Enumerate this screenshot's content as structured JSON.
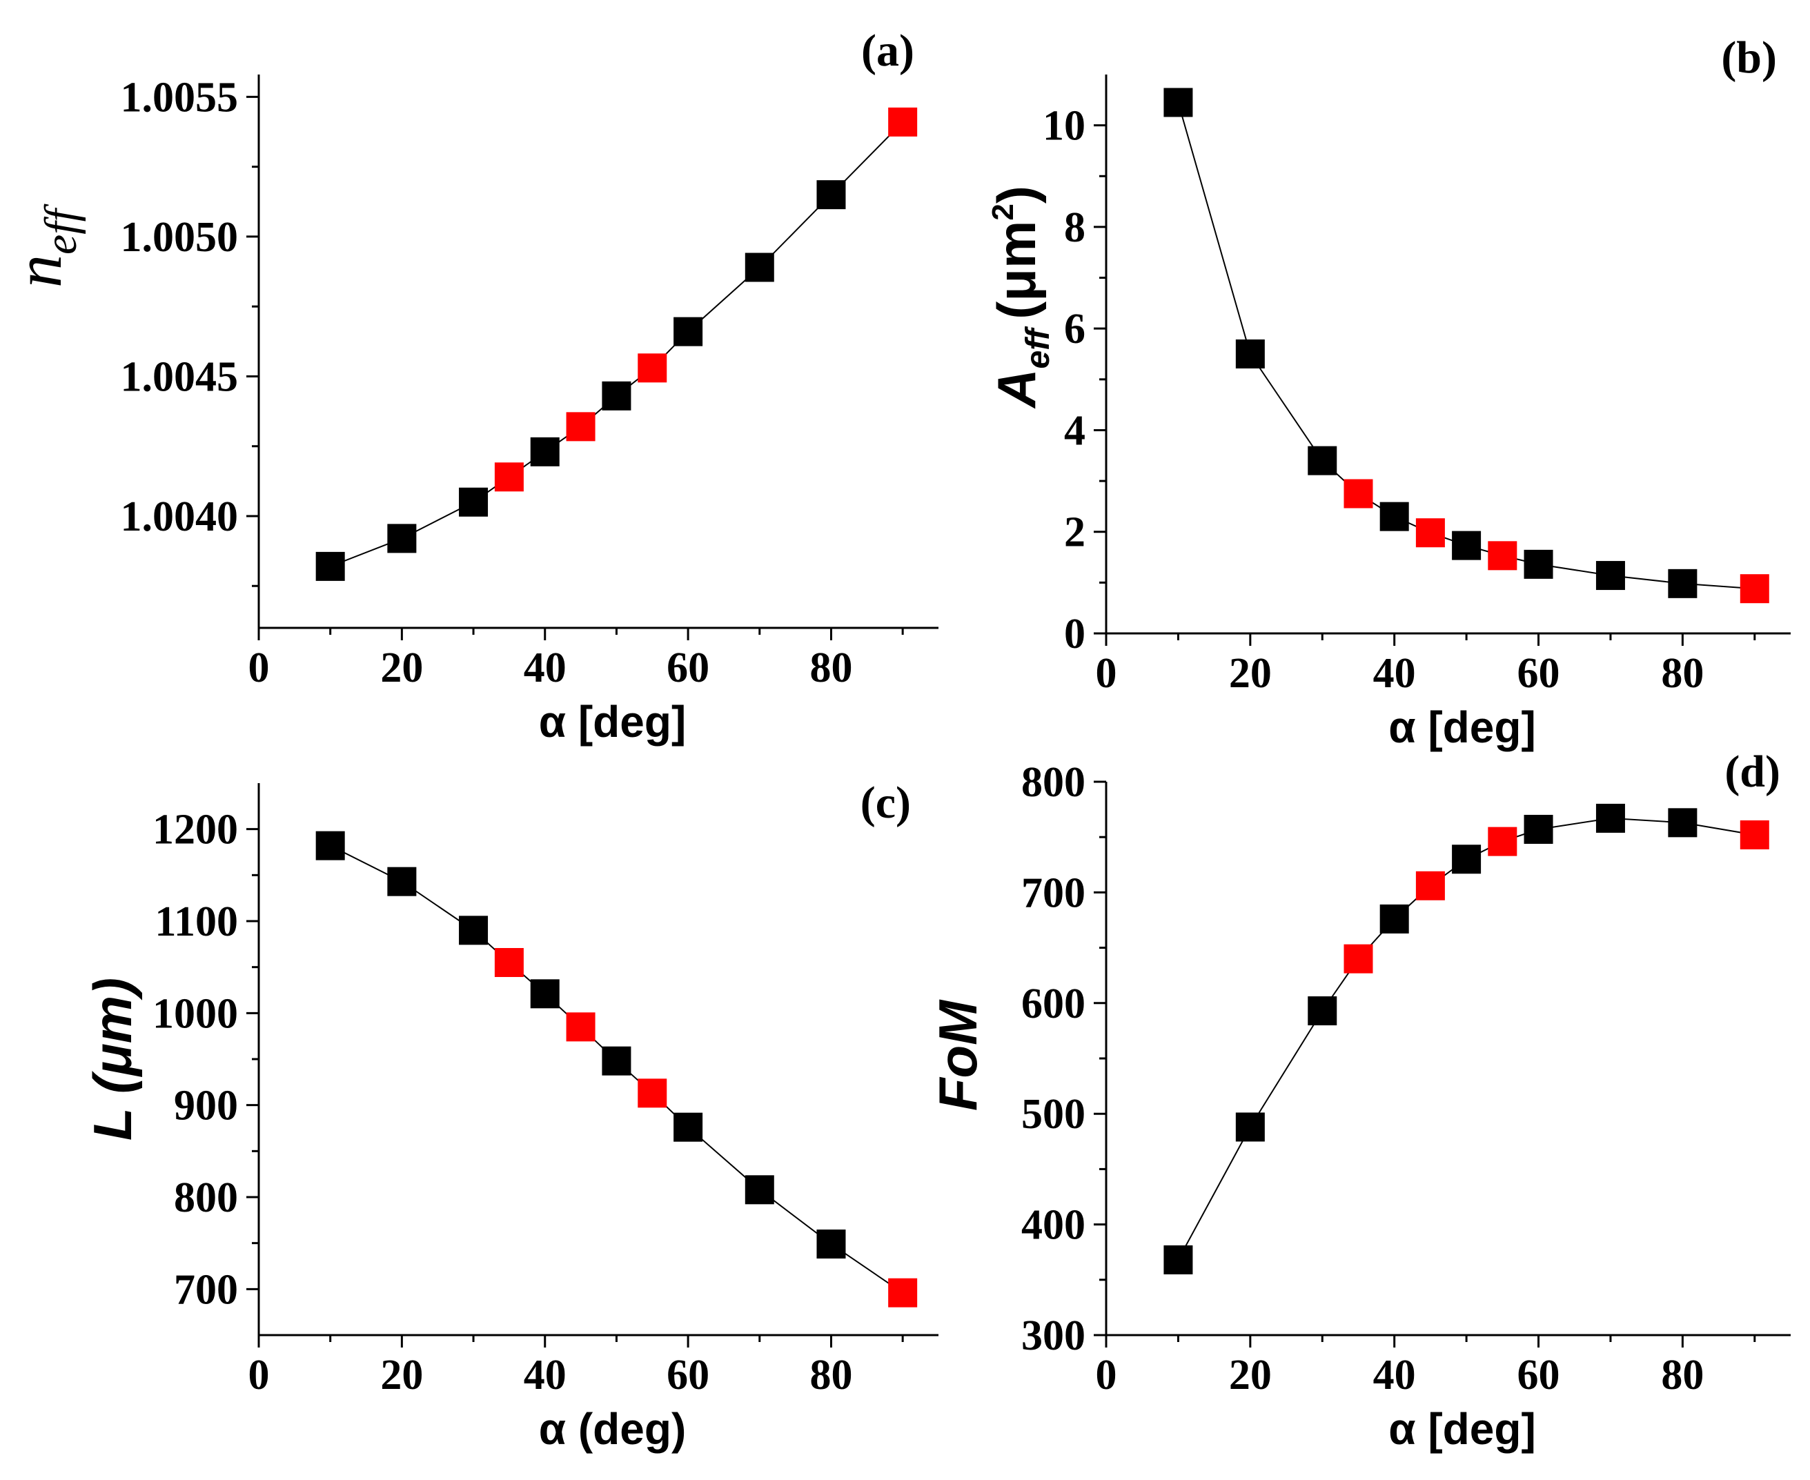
{
  "colors": {
    "base": "#000000",
    "highlight": "#ff0000"
  },
  "chart_data": [
    {
      "panel": "(a)",
      "type": "scatter",
      "ylabel_main": "n",
      "ylabel_sub": "eff",
      "xlabel": "α [deg]",
      "xlim": [
        0,
        95
      ],
      "ylim": [
        1.0036,
        1.00558
      ],
      "xticks": [
        0,
        20,
        40,
        60,
        80
      ],
      "xtick_labels": [
        "0",
        "20",
        "40",
        "60",
        "80"
      ],
      "yticks": [
        1.004,
        1.0045,
        1.005,
        1.0055
      ],
      "ytick_labels": [
        "1.0040",
        "1.0045",
        "1.0050",
        "1.0055"
      ],
      "points": [
        {
          "x": 10,
          "y": 1.00382,
          "hl": false
        },
        {
          "x": 20,
          "y": 1.00392,
          "hl": false
        },
        {
          "x": 30,
          "y": 1.00405,
          "hl": false
        },
        {
          "x": 35,
          "y": 1.00414,
          "hl": true
        },
        {
          "x": 40,
          "y": 1.00423,
          "hl": false
        },
        {
          "x": 45,
          "y": 1.00432,
          "hl": true
        },
        {
          "x": 50,
          "y": 1.00443,
          "hl": false
        },
        {
          "x": 55,
          "y": 1.00453,
          "hl": true
        },
        {
          "x": 60,
          "y": 1.00466,
          "hl": false
        },
        {
          "x": 70,
          "y": 1.00489,
          "hl": false
        },
        {
          "x": 80,
          "y": 1.00515,
          "hl": false
        },
        {
          "x": 90,
          "y": 1.00541,
          "hl": true
        }
      ]
    },
    {
      "panel": "(b)",
      "type": "scatter",
      "ylabel_main": "A",
      "ylabel_sub": "eff",
      "ylabel_unit": "(μm",
      "ylabel_sup": "2",
      "ylabel_close": ")",
      "xlabel": "α [deg]",
      "xlim": [
        0,
        95
      ],
      "ylim": [
        0,
        11
      ],
      "xticks": [
        0,
        20,
        40,
        60,
        80
      ],
      "xtick_labels": [
        "0",
        "20",
        "40",
        "60",
        "80"
      ],
      "yticks": [
        0,
        2,
        4,
        6,
        8,
        10
      ],
      "ytick_labels": [
        "0",
        "2",
        "4",
        "6",
        "8",
        "10"
      ],
      "points": [
        {
          "x": 10,
          "y": 10.45,
          "hl": false
        },
        {
          "x": 20,
          "y": 5.5,
          "hl": false
        },
        {
          "x": 30,
          "y": 3.4,
          "hl": false
        },
        {
          "x": 35,
          "y": 2.75,
          "hl": true
        },
        {
          "x": 40,
          "y": 2.3,
          "hl": false
        },
        {
          "x": 45,
          "y": 1.98,
          "hl": true
        },
        {
          "x": 50,
          "y": 1.73,
          "hl": false
        },
        {
          "x": 55,
          "y": 1.53,
          "hl": true
        },
        {
          "x": 60,
          "y": 1.36,
          "hl": false
        },
        {
          "x": 70,
          "y": 1.14,
          "hl": false
        },
        {
          "x": 80,
          "y": 0.98,
          "hl": false
        },
        {
          "x": 90,
          "y": 0.88,
          "hl": true
        }
      ]
    },
    {
      "panel": "(c)",
      "type": "scatter",
      "ylabel": "L (μm)",
      "xlabel": "α (deg)",
      "xlim": [
        0,
        95
      ],
      "ylim": [
        650,
        1250
      ],
      "xticks": [
        0,
        20,
        40,
        60,
        80
      ],
      "xtick_labels": [
        "0",
        "20",
        "40",
        "60",
        "80"
      ],
      "yticks": [
        700,
        800,
        900,
        1000,
        1100,
        1200
      ],
      "ytick_labels": [
        "700",
        "800",
        "900",
        "1000",
        "1100",
        "1200"
      ],
      "points": [
        {
          "x": 10,
          "y": 1182,
          "hl": false
        },
        {
          "x": 20,
          "y": 1143,
          "hl": false
        },
        {
          "x": 30,
          "y": 1090,
          "hl": false
        },
        {
          "x": 35,
          "y": 1055,
          "hl": true
        },
        {
          "x": 40,
          "y": 1021,
          "hl": false
        },
        {
          "x": 45,
          "y": 985,
          "hl": true
        },
        {
          "x": 50,
          "y": 948,
          "hl": false
        },
        {
          "x": 55,
          "y": 913,
          "hl": true
        },
        {
          "x": 60,
          "y": 876,
          "hl": false
        },
        {
          "x": 70,
          "y": 808,
          "hl": false
        },
        {
          "x": 80,
          "y": 749,
          "hl": false
        },
        {
          "x": 90,
          "y": 696,
          "hl": true
        }
      ]
    },
    {
      "panel": "(d)",
      "type": "scatter",
      "ylabel": "FoM",
      "xlabel": "α [deg]",
      "xlim": [
        0,
        95
      ],
      "ylim": [
        300,
        800
      ],
      "xticks": [
        0,
        20,
        40,
        60,
        80
      ],
      "xtick_labels": [
        "0",
        "20",
        "40",
        "60",
        "80"
      ],
      "yticks": [
        300,
        400,
        500,
        600,
        700,
        800
      ],
      "ytick_labels": [
        "300",
        "400",
        "500",
        "600",
        "700",
        "800"
      ],
      "points": [
        {
          "x": 10,
          "y": 368,
          "hl": false
        },
        {
          "x": 20,
          "y": 488,
          "hl": false
        },
        {
          "x": 30,
          "y": 593,
          "hl": false
        },
        {
          "x": 35,
          "y": 640,
          "hl": true
        },
        {
          "x": 40,
          "y": 676,
          "hl": false
        },
        {
          "x": 45,
          "y": 706,
          "hl": true
        },
        {
          "x": 50,
          "y": 730,
          "hl": false
        },
        {
          "x": 55,
          "y": 746,
          "hl": true
        },
        {
          "x": 60,
          "y": 757,
          "hl": false
        },
        {
          "x": 70,
          "y": 767,
          "hl": false
        },
        {
          "x": 80,
          "y": 763,
          "hl": false
        },
        {
          "x": 90,
          "y": 752,
          "hl": true
        }
      ]
    }
  ]
}
